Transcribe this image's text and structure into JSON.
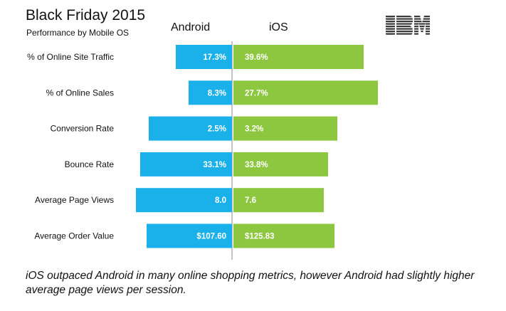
{
  "title": "Black Friday 2015",
  "subtitle": "Performance by Mobile OS",
  "logo_text": "IBM",
  "caption": "iOS outpaced Android in many online shopping metrics, however Android had slightly higher average page views per session.",
  "colors": {
    "android": "#1ab0ea",
    "ios": "#8dc63f",
    "divider": "#8a8a8a"
  },
  "chart_data": {
    "type": "bar",
    "orientation": "horizontal-diverging",
    "title": "Black Friday 2015",
    "subtitle": "Performance by Mobile OS",
    "categories": [
      "% of Online Site Traffic",
      "% of Online Sales",
      "Conversion Rate",
      "Bounce Rate",
      "Average Page Views",
      "Average Order Value"
    ],
    "series": [
      {
        "name": "Android",
        "values": [
          17.3,
          8.3,
          2.5,
          33.1,
          8.0,
          107.6
        ],
        "labels": [
          "17.3%",
          "8.3%",
          "2.5%",
          "33.1%",
          "8.0",
          "$107.60"
        ]
      },
      {
        "name": "iOS",
        "values": [
          39.6,
          27.7,
          3.2,
          33.8,
          7.6,
          125.83
        ],
        "labels": [
          "39.6%",
          "27.7%",
          "3.2%",
          "33.8%",
          "7.6",
          "$125.83"
        ]
      }
    ],
    "legend": "top",
    "grid": false
  }
}
